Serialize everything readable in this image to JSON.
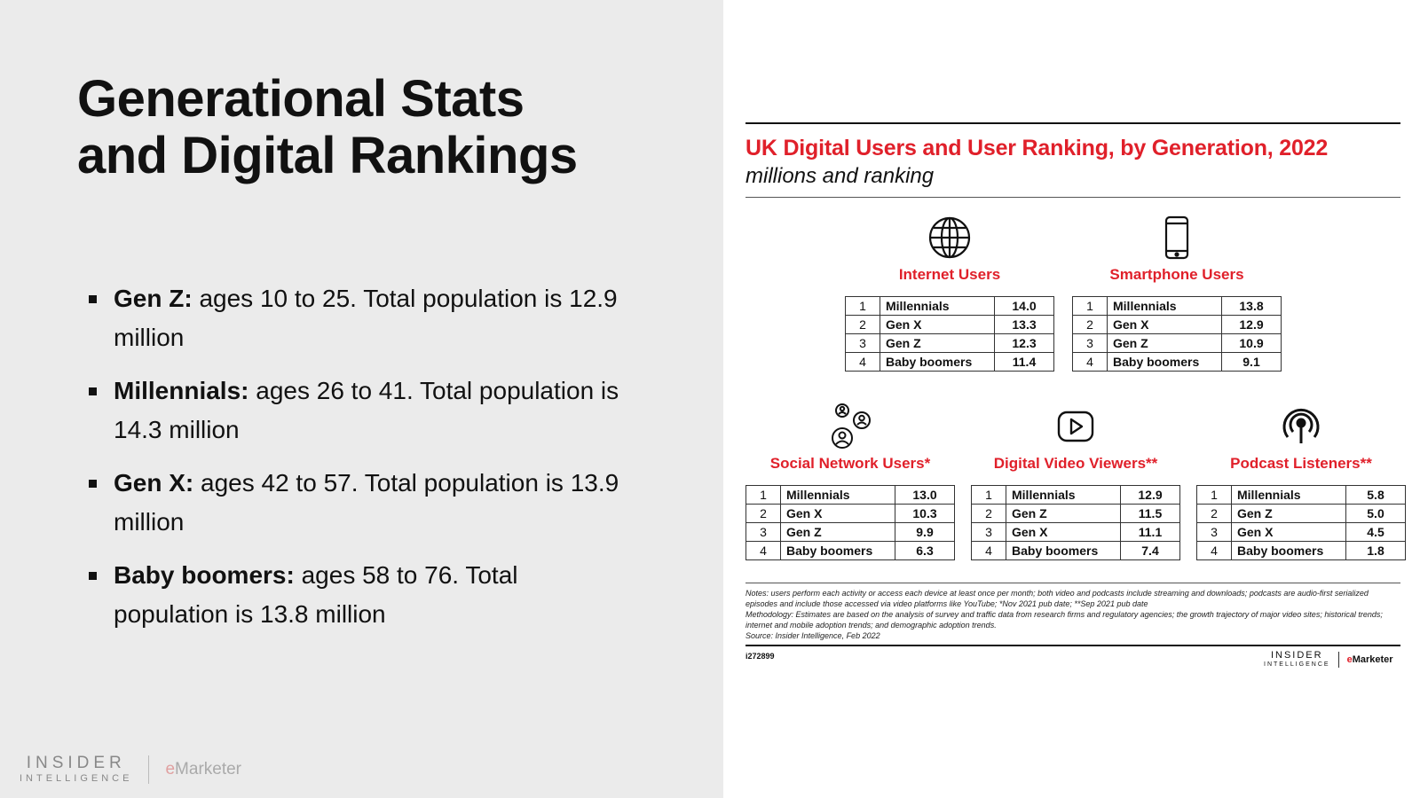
{
  "slide": {
    "title_line1": "Generational Stats",
    "title_line2": "and Digital Rankings",
    "bullets": [
      {
        "label": "Gen Z:",
        "text": " ages 10 to 25. Total population is 12.9 million"
      },
      {
        "label": "Millennials:",
        "text": " ages 26 to 41. Total population is 14.3 million"
      },
      {
        "label": "Gen X:",
        "text": " ages 42 to 57. Total population is 13.9 million"
      },
      {
        "label": "Baby boomers:",
        "text": " ages 58 to 76. Total population is 13.8 million"
      }
    ],
    "footer": {
      "brand_line1": "INSIDER",
      "brand_line2": "INTELLIGENCE",
      "em_e": "e",
      "em_rest": "Marketer"
    }
  },
  "chart": {
    "title": "UK Digital Users and User Ranking, by Generation, 2022",
    "subtitle": "millions and ranking",
    "notes_line1": "Notes: users perform each activity or access each device at least once per month; both video and podcasts include streaming and downloads; podcasts are audio-first serialized episodes and include those accessed via video platforms like YouTube; *Nov 2021 pub date; **Sep 2021 pub date",
    "notes_line2": "Methodology: Estimates are based on the analysis of survey and traffic data from research firms and regulatory agencies; the growth trajectory of major video sites; historical trends; internet and mobile adoption trends; and demographic adoption trends.",
    "source": "Source: Insider Intelligence, Feb 2022",
    "chart_id": "i272899",
    "logo": {
      "brand_line1": "INSIDER",
      "brand_line2": "INTELLIGENCE",
      "em_e": "e",
      "em_rest": "Marketer"
    }
  },
  "chart_data": {
    "type": "table",
    "title": "UK Digital Users and User Ranking, by Generation, 2022",
    "subtitle": "millions and ranking",
    "tables": [
      {
        "name": "Internet Users",
        "icon": "globe-icon",
        "rows": [
          {
            "rank": "1",
            "generation": "Millennials",
            "value": "14.0"
          },
          {
            "rank": "2",
            "generation": "Gen X",
            "value": "13.3"
          },
          {
            "rank": "3",
            "generation": "Gen Z",
            "value": "12.3"
          },
          {
            "rank": "4",
            "generation": "Baby boomers",
            "value": "11.4"
          }
        ]
      },
      {
        "name": "Smartphone Users",
        "icon": "smartphone-icon",
        "rows": [
          {
            "rank": "1",
            "generation": "Millennials",
            "value": "13.8"
          },
          {
            "rank": "2",
            "generation": "Gen X",
            "value": "12.9"
          },
          {
            "rank": "3",
            "generation": "Gen Z",
            "value": "10.9"
          },
          {
            "rank": "4",
            "generation": "Baby boomers",
            "value": "9.1"
          }
        ]
      },
      {
        "name": "Social Network Users*",
        "icon": "social-network-icon",
        "rows": [
          {
            "rank": "1",
            "generation": "Millennials",
            "value": "13.0"
          },
          {
            "rank": "2",
            "generation": "Gen X",
            "value": "10.3"
          },
          {
            "rank": "3",
            "generation": "Gen Z",
            "value": "9.9"
          },
          {
            "rank": "4",
            "generation": "Baby boomers",
            "value": "6.3"
          }
        ]
      },
      {
        "name": "Digital Video Viewers**",
        "icon": "video-play-icon",
        "rows": [
          {
            "rank": "1",
            "generation": "Millennials",
            "value": "12.9"
          },
          {
            "rank": "2",
            "generation": "Gen Z",
            "value": "11.5"
          },
          {
            "rank": "3",
            "generation": "Gen X",
            "value": "11.1"
          },
          {
            "rank": "4",
            "generation": "Baby boomers",
            "value": "7.4"
          }
        ]
      },
      {
        "name": "Podcast Listeners**",
        "icon": "podcast-icon",
        "rows": [
          {
            "rank": "1",
            "generation": "Millennials",
            "value": "5.8"
          },
          {
            "rank": "2",
            "generation": "Gen Z",
            "value": "5.0"
          },
          {
            "rank": "3",
            "generation": "Gen X",
            "value": "4.5"
          },
          {
            "rank": "4",
            "generation": "Baby boomers",
            "value": "1.8"
          }
        ]
      }
    ]
  }
}
